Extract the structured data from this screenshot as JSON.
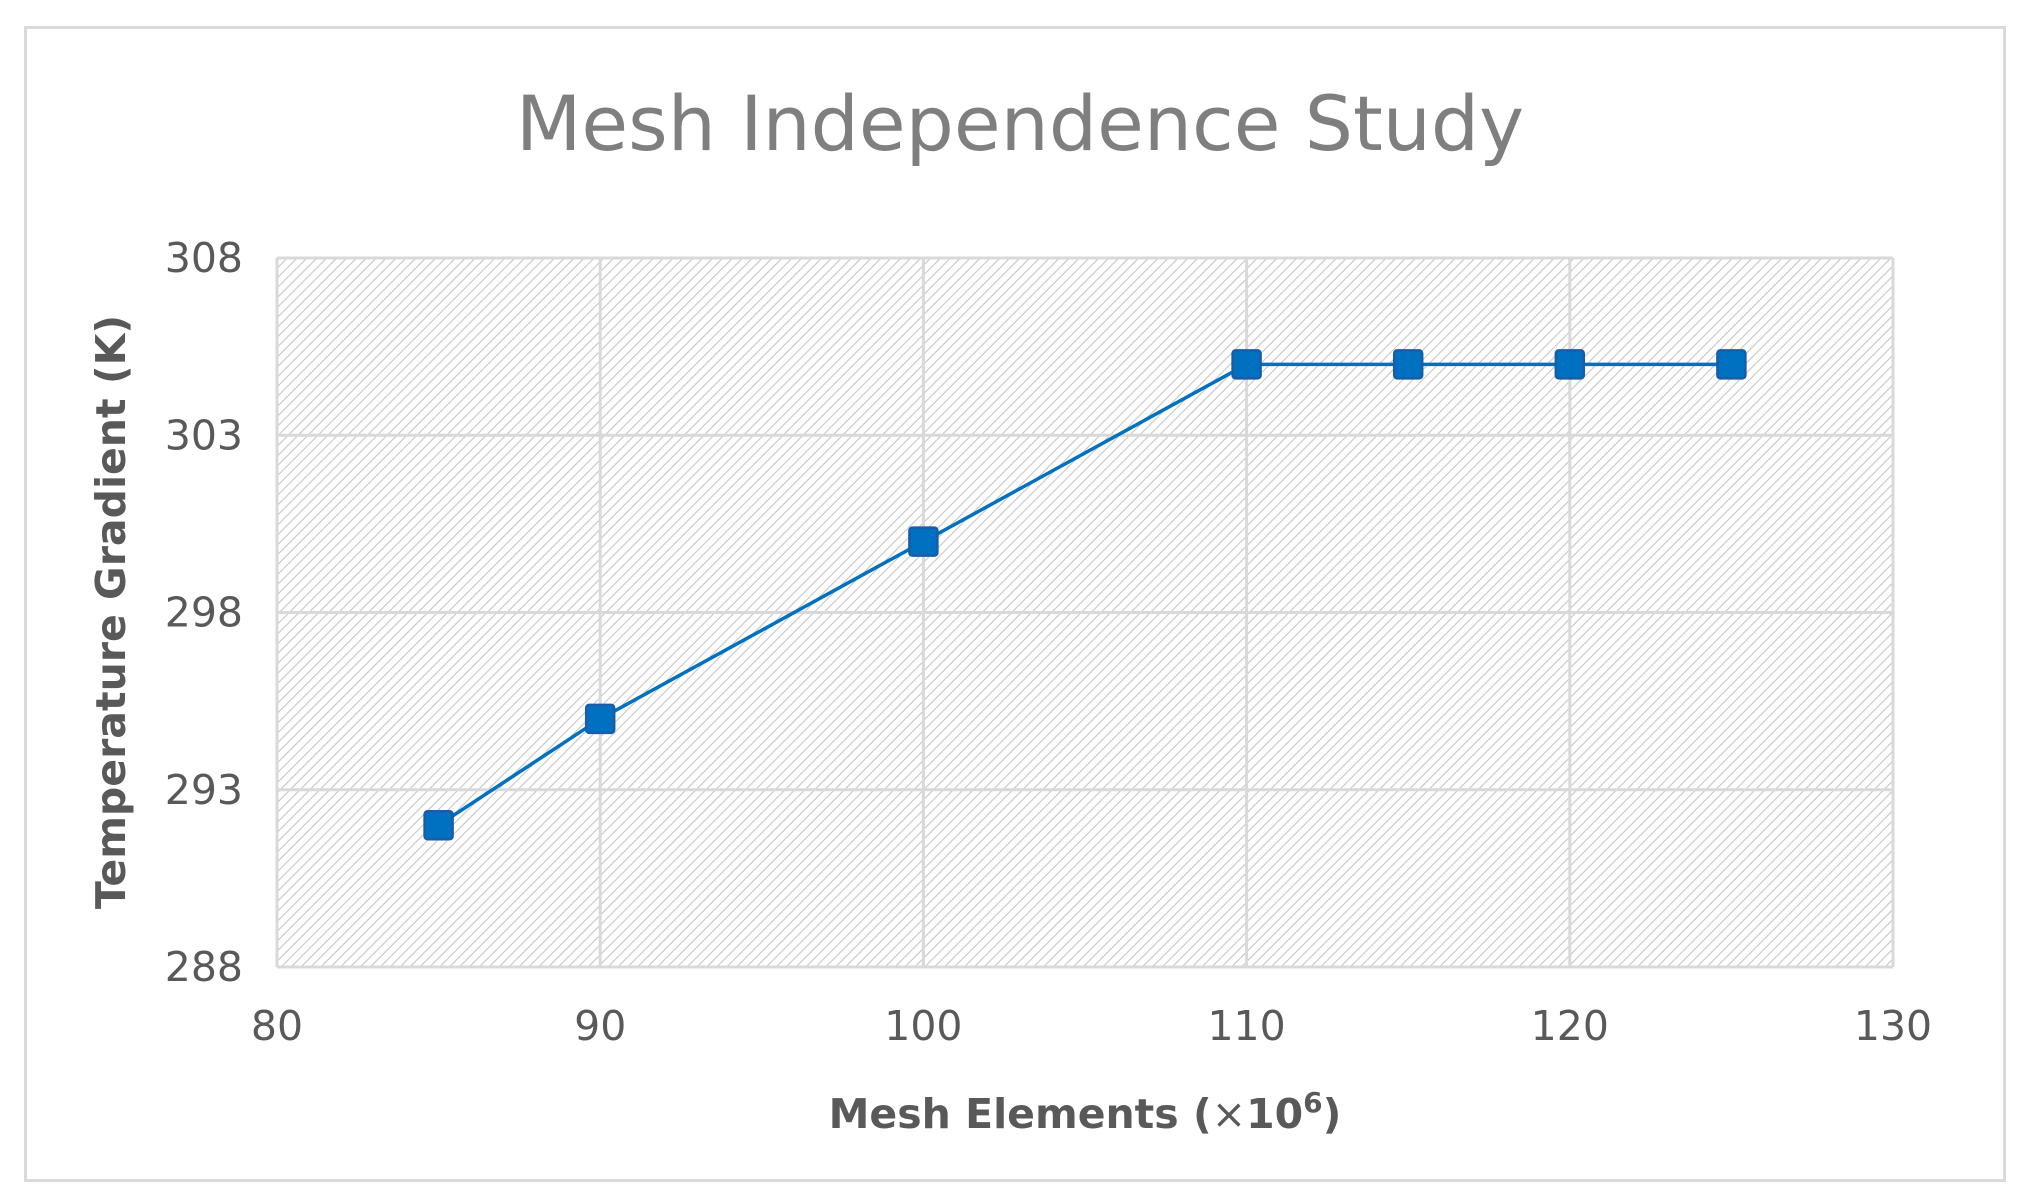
{
  "chart_data": {
    "type": "line",
    "title": "Mesh Independence Study",
    "xlabel_prefix": "Mesh Elements (",
    "xlabel_multiplier": "×",
    "xlabel_base": "10",
    "xlabel_exponent": "6",
    "xlabel_suffix": ")",
    "ylabel": "Temperature Gradient (K)",
    "xlim": [
      80,
      130
    ],
    "ylim": [
      288,
      308
    ],
    "x_ticks": [
      80,
      90,
      100,
      110,
      120,
      130
    ],
    "y_ticks": [
      288,
      293,
      298,
      303,
      308
    ],
    "grid": true,
    "legend": "none",
    "series": [
      {
        "x": [
          85,
          90,
          100,
          110,
          115,
          120,
          125
        ],
        "y": [
          292,
          295,
          300,
          305,
          305,
          305,
          305
        ],
        "color": "#0070c0",
        "marker": "square"
      }
    ]
  }
}
